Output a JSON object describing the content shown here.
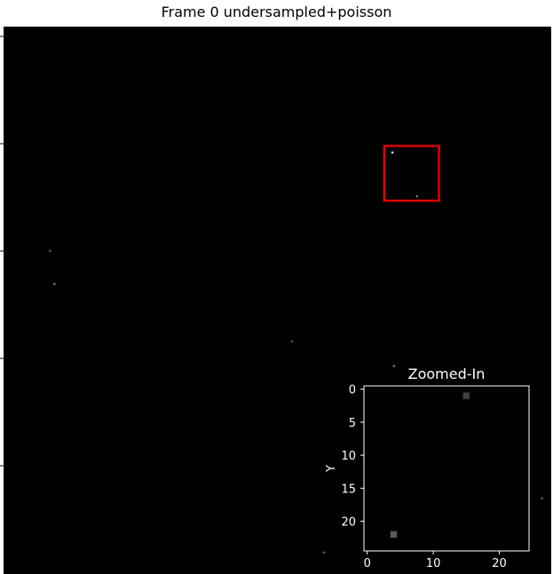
{
  "chart_data": [
    {
      "type": "heatmap",
      "title": "Frame 0 undersampled+poisson",
      "colormap": "gray",
      "background_value": 0,
      "bright_points": [
        {
          "x": 0.71,
          "y": 0.23,
          "value": 0.85
        },
        {
          "x": 0.755,
          "y": 0.31,
          "value": 0.45
        },
        {
          "x": 0.085,
          "y": 0.41,
          "value": 0.35
        },
        {
          "x": 0.093,
          "y": 0.47,
          "value": 0.45
        },
        {
          "x": 0.527,
          "y": 0.575,
          "value": 0.35
        },
        {
          "x": 0.713,
          "y": 0.62,
          "value": 0.45
        },
        {
          "x": 0.983,
          "y": 0.862,
          "value": 0.35
        },
        {
          "x": 0.585,
          "y": 0.961,
          "value": 0.35
        }
      ],
      "zoom_box": {
        "x0": 0.695,
        "y0": 0.218,
        "x1": 0.795,
        "y1": 0.318,
        "color": "#dd0000"
      },
      "yticks_count": 5,
      "ytick_labels": []
    },
    {
      "type": "heatmap",
      "title": "Zoomed-In",
      "xlabel": "",
      "ylabel": "Y",
      "xlim": [
        -0.5,
        24.5
      ],
      "ylim": [
        24.5,
        -0.5
      ],
      "xticks": [
        "0",
        "10",
        "20"
      ],
      "xtick_values": [
        0,
        10,
        20
      ],
      "yticks": [
        "0",
        "5",
        "10",
        "15",
        "20"
      ],
      "ytick_values": [
        0,
        5,
        10,
        15,
        20
      ],
      "pixels": [
        {
          "x": 15,
          "y": 1,
          "value": 0.25
        },
        {
          "x": 4,
          "y": 22,
          "value": 0.35
        }
      ]
    }
  ]
}
